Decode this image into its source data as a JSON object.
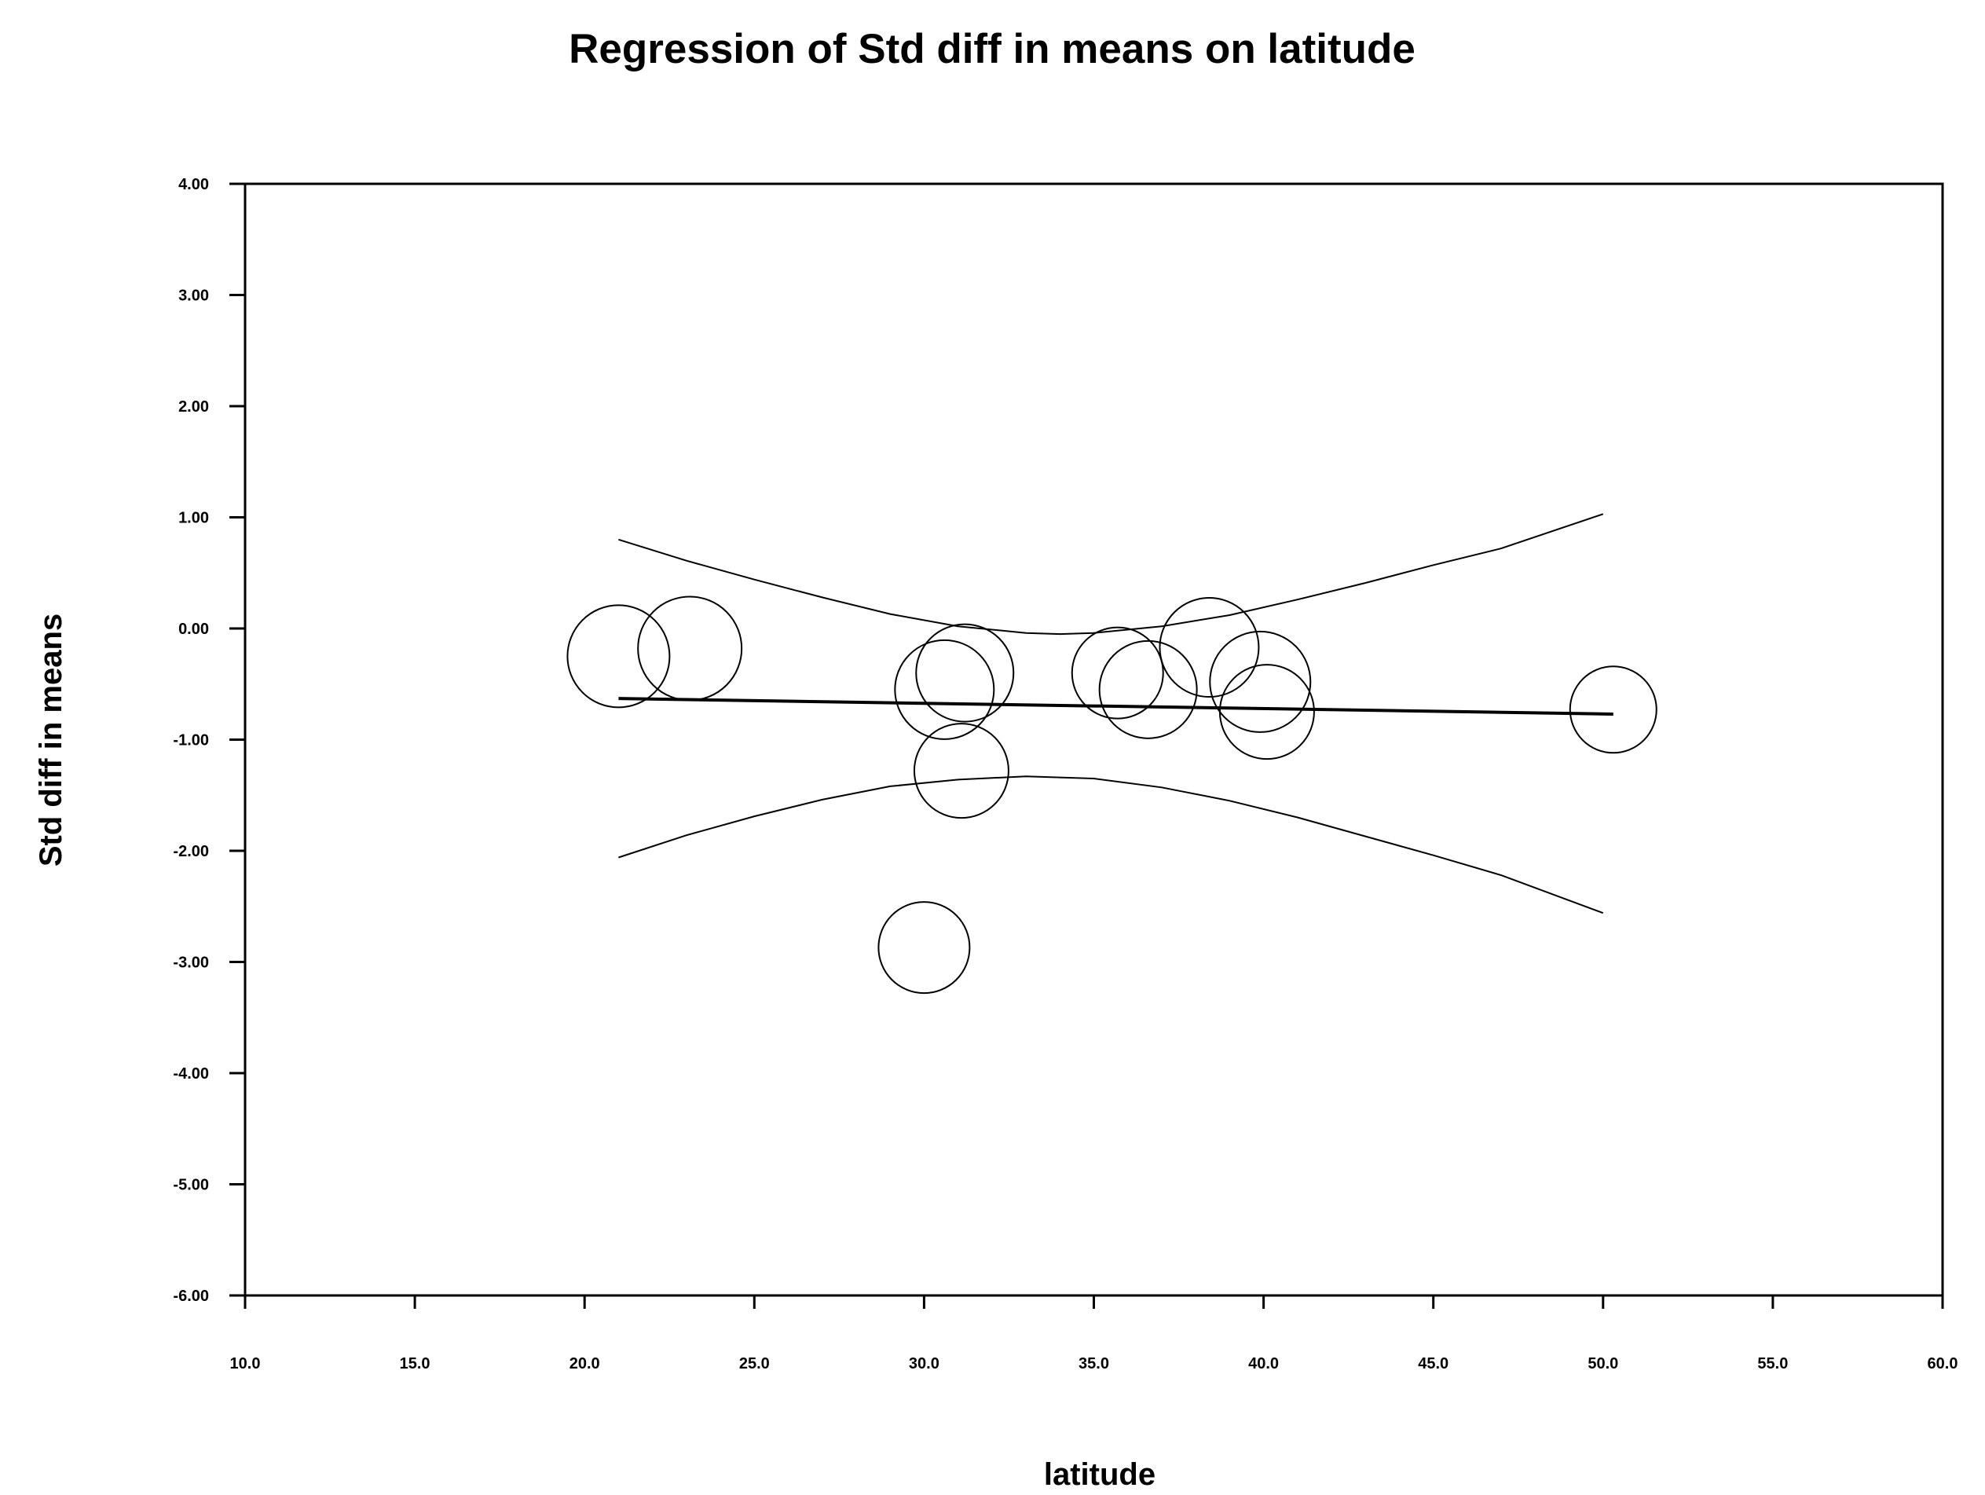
{
  "chart_data": {
    "type": "scatter",
    "title": "Regression of Std diff in means on latitude",
    "xlabel": "latitude",
    "ylabel": "Std diff in means",
    "xlim": [
      10.0,
      60.0
    ],
    "ylim": [
      -6.0,
      4.0
    ],
    "x_ticks": [
      "10.0",
      "15.0",
      "20.0",
      "25.0",
      "30.0",
      "35.0",
      "40.0",
      "45.0",
      "50.0",
      "55.0",
      "60.0"
    ],
    "y_ticks": [
      "4.00",
      "3.00",
      "2.00",
      "1.00",
      "0.00",
      "-1.00",
      "-2.00",
      "-3.00",
      "-4.00",
      "-5.00",
      "-6.00"
    ],
    "points": [
      {
        "x": 21.0,
        "y": -0.25,
        "r": 65
      },
      {
        "x": 23.1,
        "y": -0.18,
        "r": 66
      },
      {
        "x": 30.0,
        "y": -2.87,
        "r": 58
      },
      {
        "x": 30.6,
        "y": -0.55,
        "r": 63
      },
      {
        "x": 31.1,
        "y": -1.28,
        "r": 60
      },
      {
        "x": 31.2,
        "y": -0.4,
        "r": 62
      },
      {
        "x": 35.7,
        "y": -0.4,
        "r": 58
      },
      {
        "x": 36.6,
        "y": -0.55,
        "r": 62
      },
      {
        "x": 38.4,
        "y": -0.17,
        "r": 63
      },
      {
        "x": 39.9,
        "y": -0.48,
        "r": 64
      },
      {
        "x": 40.1,
        "y": -0.75,
        "r": 60
      },
      {
        "x": 50.3,
        "y": -0.73,
        "r": 55
      }
    ],
    "regression_line": {
      "x": [
        21.0,
        50.3
      ],
      "y": [
        -0.63,
        -0.77
      ]
    },
    "ci_upper": {
      "x": [
        21.0,
        23.0,
        25.0,
        27.0,
        29.0,
        31.0,
        33.0,
        34.0,
        35.0,
        37.0,
        39.0,
        41.0,
        43.0,
        45.0,
        47.0,
        50.0
      ],
      "y": [
        0.8,
        0.61,
        0.44,
        0.28,
        0.13,
        0.02,
        -0.04,
        -0.05,
        -0.04,
        0.02,
        0.12,
        0.26,
        0.41,
        0.57,
        0.72,
        1.03
      ]
    },
    "ci_lower": {
      "x": [
        21.0,
        23.0,
        25.0,
        27.0,
        29.0,
        31.0,
        33.0,
        35.0,
        37.0,
        39.0,
        41.0,
        43.0,
        45.0,
        47.0,
        50.0
      ],
      "y": [
        -2.06,
        -1.86,
        -1.69,
        -1.54,
        -1.42,
        -1.36,
        -1.33,
        -1.35,
        -1.43,
        -1.55,
        -1.7,
        -1.87,
        -2.04,
        -2.22,
        -2.56
      ]
    },
    "grid": false,
    "legend": "none"
  }
}
